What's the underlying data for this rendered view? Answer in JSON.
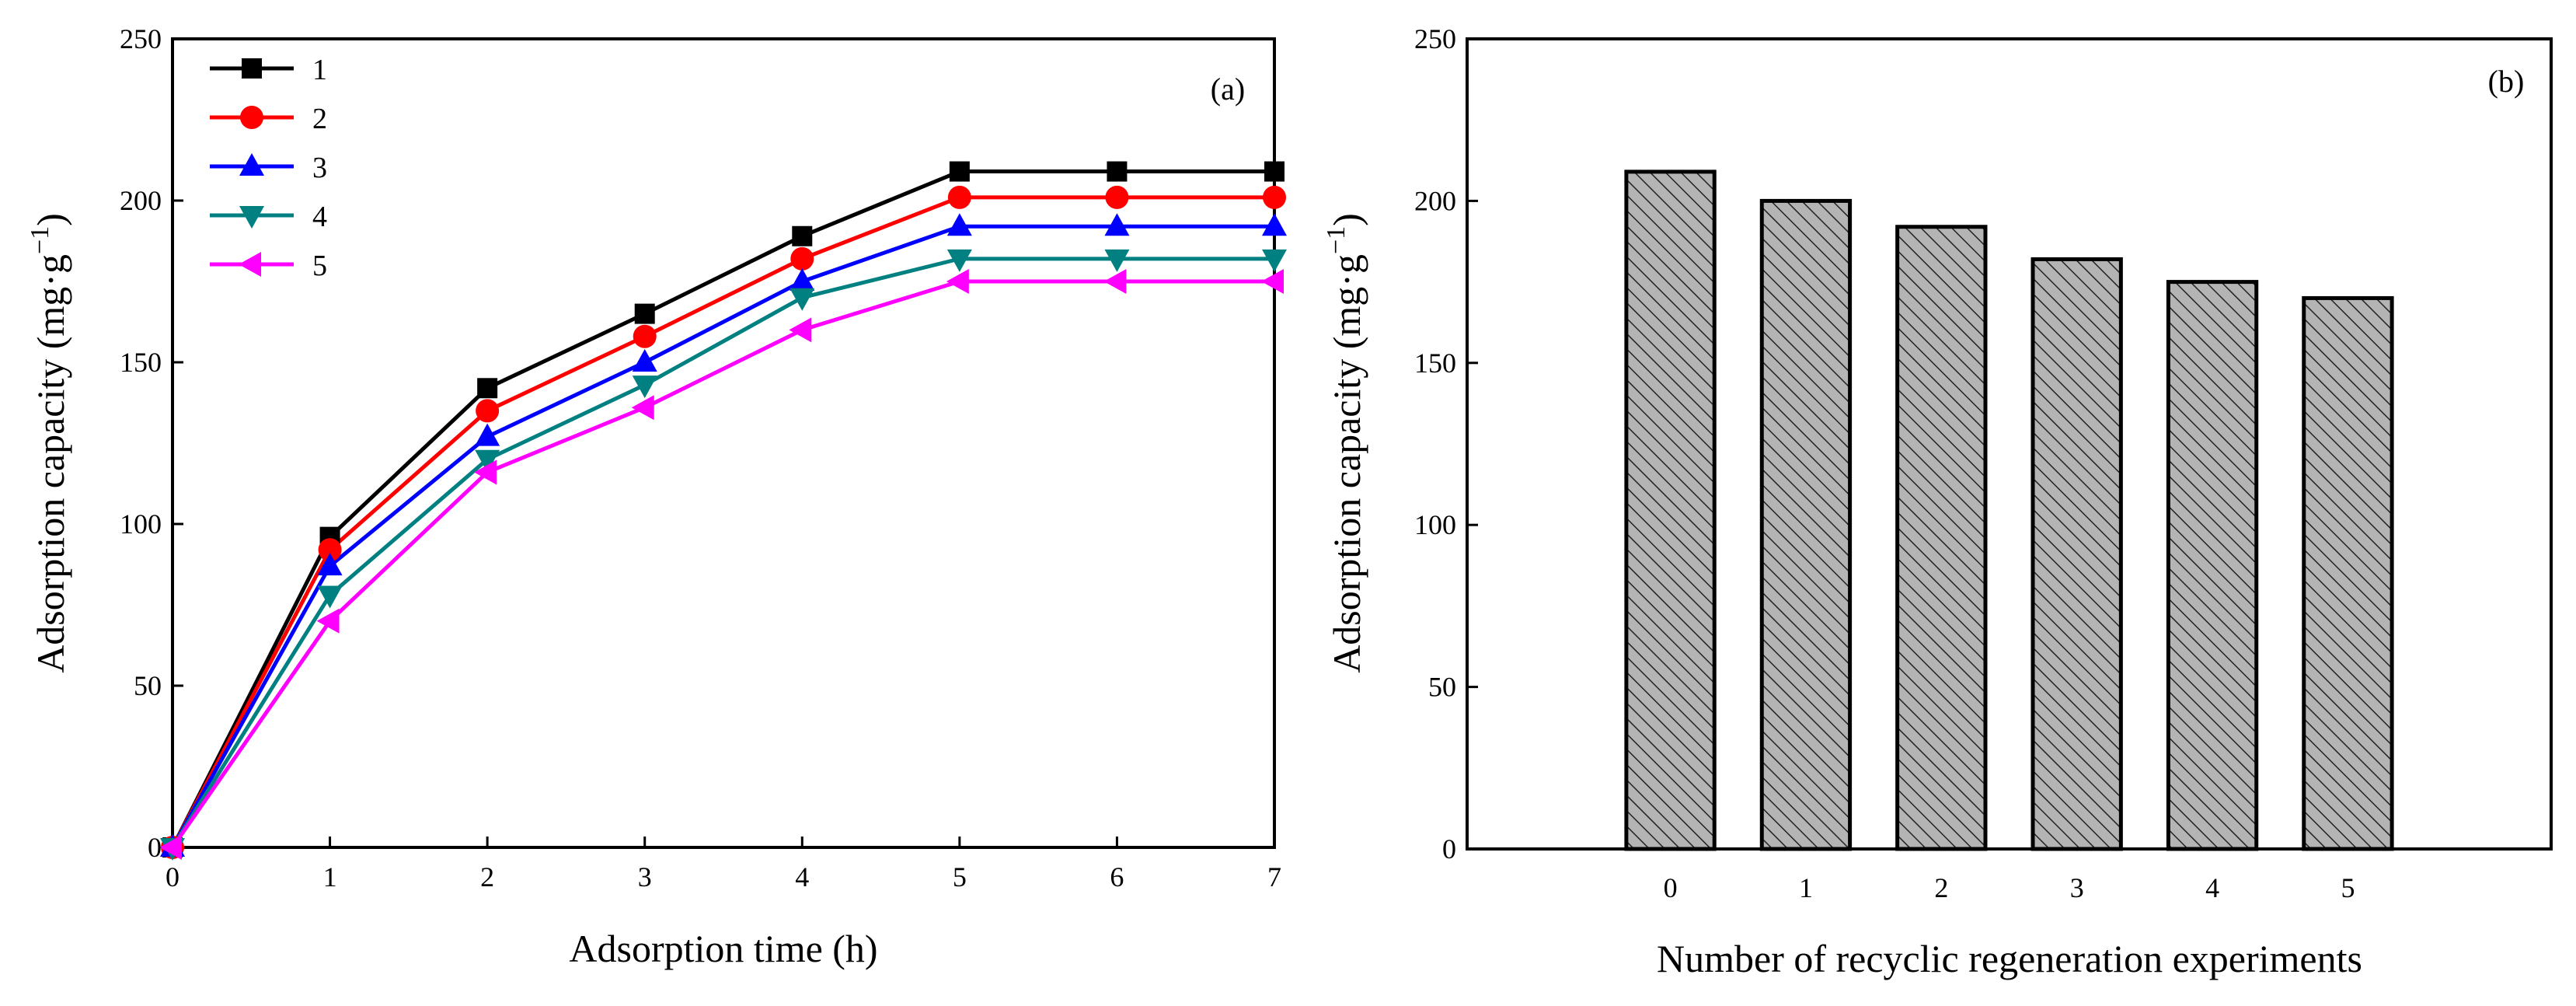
{
  "chart_data": [
    {
      "type": "line",
      "panel_label": "(a)",
      "xlabel": "Adsorption time (h)",
      "ylabel_main": "Adsorption capacity (mg·g",
      "ylabel_exp": "−1",
      "ylabel_close": ")",
      "xlim": [
        0,
        7
      ],
      "ylim": [
        0,
        250
      ],
      "xticks": [
        0,
        1,
        2,
        3,
        4,
        5,
        6,
        7
      ],
      "xtick_labels": [
        "0",
        "1",
        "2",
        "3",
        "4",
        "5",
        "6",
        "7"
      ],
      "yticks": [
        0,
        50,
        100,
        150,
        200,
        250
      ],
      "ytick_labels": [
        "0",
        "50",
        "100",
        "150",
        "200",
        "250"
      ],
      "legend_position": "top-left",
      "x": [
        0,
        1,
        2,
        3,
        4,
        5,
        6,
        7
      ],
      "series": [
        {
          "name": "1",
          "color": "#000000",
          "marker": "square",
          "values": [
            0,
            96,
            142,
            165,
            189,
            209,
            209,
            209
          ]
        },
        {
          "name": "2",
          "color": "#ff0000",
          "marker": "circle",
          "values": [
            0,
            92,
            135,
            158,
            182,
            201,
            201,
            201
          ]
        },
        {
          "name": "3",
          "color": "#0000ff",
          "marker": "triangle-up",
          "values": [
            0,
            87,
            127,
            150,
            175,
            192,
            192,
            192
          ]
        },
        {
          "name": "4",
          "color": "#008080",
          "marker": "triangle-down",
          "values": [
            0,
            78,
            120,
            143,
            170,
            182,
            182,
            182
          ]
        },
        {
          "name": "5",
          "color": "#ff00ff",
          "marker": "triangle-left",
          "values": [
            0,
            70,
            116,
            136,
            160,
            175,
            175,
            175
          ]
        }
      ]
    },
    {
      "type": "bar",
      "panel_label": "(b)",
      "xlabel": "Number of recyclic regeneration experiments",
      "ylabel_main": "Adsorption capacity (mg·g",
      "ylabel_exp": "−1",
      "ylabel_close": ")",
      "ylim": [
        0,
        250
      ],
      "yticks": [
        0,
        50,
        100,
        150,
        200,
        250
      ],
      "ytick_labels": [
        "0",
        "50",
        "100",
        "150",
        "200",
        "250"
      ],
      "categories": [
        "0",
        "1",
        "2",
        "3",
        "4",
        "5"
      ],
      "values": [
        209,
        200,
        192,
        182,
        175,
        170
      ],
      "bar_fill": "#b4b4b4",
      "bar_hatch": "diagonal"
    }
  ]
}
